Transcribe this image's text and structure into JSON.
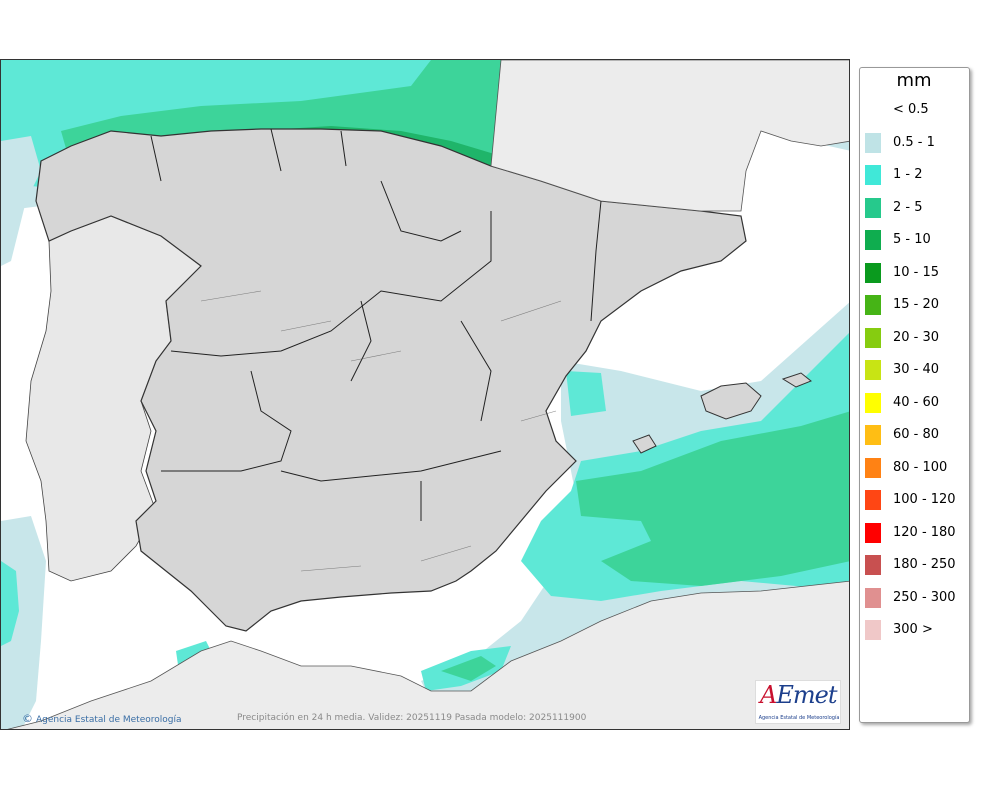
{
  "legend": {
    "unit": "mm",
    "items": [
      {
        "label": "< 0.5",
        "color": "#ffffff"
      },
      {
        "label": "0.5 - 1",
        "color": "#bfe3e6"
      },
      {
        "label": "1 - 2",
        "color": "#40e8d8"
      },
      {
        "label": "2 - 5",
        "color": "#26c98c"
      },
      {
        "label": "5 - 10",
        "color": "#0fad4f"
      },
      {
        "label": "10 - 15",
        "color": "#0a9a1e"
      },
      {
        "label": "15 - 20",
        "color": "#46b416"
      },
      {
        "label": "20 - 30",
        "color": "#86cc10"
      },
      {
        "label": "30 - 40",
        "color": "#c8e414"
      },
      {
        "label": "40 - 60",
        "color": "#ffff00"
      },
      {
        "label": "60 - 80",
        "color": "#ffbe14"
      },
      {
        "label": "80 - 100",
        "color": "#ff8214"
      },
      {
        "label": "100 - 120",
        "color": "#ff4614"
      },
      {
        "label": "120 - 180",
        "color": "#ff0000"
      },
      {
        "label": "180 - 250",
        "color": "#c85050"
      },
      {
        "label": "250 - 300",
        "color": "#e09090"
      },
      {
        "label": "300 >",
        "color": "#f0c8c8"
      }
    ]
  },
  "footer": {
    "credit_symbol": "©",
    "credit": "Agencia Estatal de Meteorología",
    "validity": "Precipitación en 24 h media. Validez: 20251119 Pasada modelo: 2025111900"
  },
  "logo": {
    "text_a": "A",
    "text_rest": "Emet",
    "subtitle": "Agencia Estatal de Meteorología"
  }
}
